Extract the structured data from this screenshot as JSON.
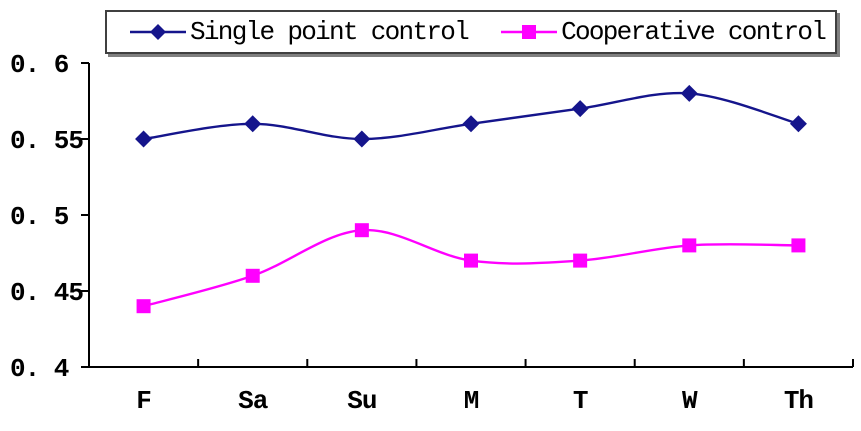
{
  "chart_data": {
    "type": "line",
    "smoothed": true,
    "title": "",
    "xlabel": "",
    "ylabel": "",
    "categories": [
      "F",
      "Sa",
      "Su",
      "M",
      "T",
      "W",
      "Th"
    ],
    "series": [
      {
        "name": "Single point control",
        "color": "#15158C",
        "marker": "diamond",
        "values": [
          0.55,
          0.56,
          0.55,
          0.56,
          0.57,
          0.58,
          0.56
        ]
      },
      {
        "name": "Cooperative control",
        "color": "#FF00FF",
        "marker": "square",
        "values": [
          0.44,
          0.46,
          0.49,
          0.47,
          0.47,
          0.48,
          0.48
        ]
      }
    ],
    "ylim": [
      0.4,
      0.6
    ],
    "yticks": [
      0.4,
      0.45,
      0.5,
      0.55,
      0.6
    ],
    "ytick_labels": [
      "0. 4",
      "0. 45",
      "0. 5",
      "0. 55",
      "0. 6"
    ],
    "grid": false,
    "legend_position": "top",
    "axis_color": "#000000"
  }
}
